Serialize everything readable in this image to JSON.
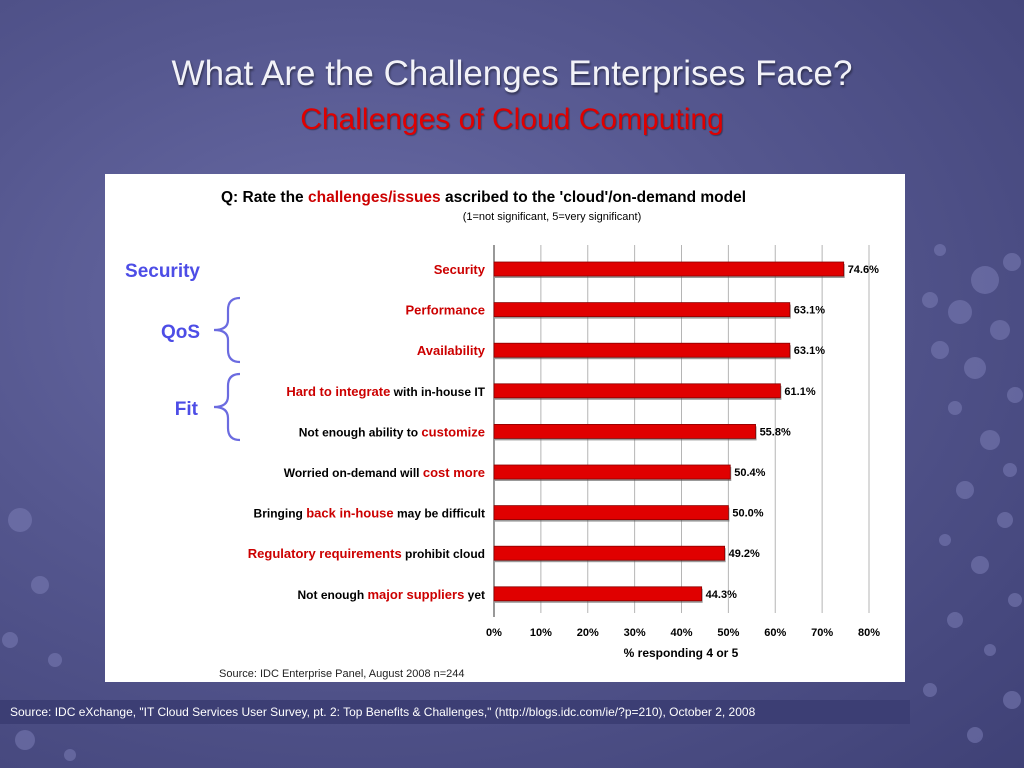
{
  "slide": {
    "title": "What Are the Challenges Enterprises Face?",
    "subtitle": "Challenges of Cloud Computing",
    "source_note": "Source: IDC eXchange, \"IT Cloud Services User Survey, pt. 2: Top Benefits & Challenges,\" (http://blogs.idc.com/ie/?p=210), October 2, 2008"
  },
  "groups": {
    "security": "Security",
    "qos": "QoS",
    "fit": "Fit"
  },
  "colors": {
    "bar": "#e00000",
    "highlight": "#cc0000",
    "group_label": "#4d4de6",
    "brace": "#6b6be0"
  },
  "chart_data": {
    "type": "bar",
    "orientation": "horizontal",
    "title_parts": [
      {
        "text": "Q: Rate the ",
        "hl": false
      },
      {
        "text": "challenges/issues",
        "hl": true
      },
      {
        "text": " ascribed to the 'cloud'/on-demand model",
        "hl": false
      }
    ],
    "subtitle": "(1=not significant, 5=very significant)",
    "categories": [
      [
        {
          "text": "Security",
          "hl": true
        }
      ],
      [
        {
          "text": "Performance",
          "hl": true
        }
      ],
      [
        {
          "text": "Availability",
          "hl": true
        }
      ],
      [
        {
          "text": "Hard to integrate",
          "hl": true
        },
        {
          "text": " with in-house IT",
          "hl": false
        }
      ],
      [
        {
          "text": "Not enough ability to ",
          "hl": false
        },
        {
          "text": "customize",
          "hl": true
        }
      ],
      [
        {
          "text": "Worried on-demand will ",
          "hl": false
        },
        {
          "text": "cost more",
          "hl": true
        }
      ],
      [
        {
          "text": "Bringing ",
          "hl": false
        },
        {
          "text": "back in-house",
          "hl": true
        },
        {
          "text": " may be difficult",
          "hl": false
        }
      ],
      [
        {
          "text": "Regulatory requirements",
          "hl": true
        },
        {
          "text": " prohibit cloud",
          "hl": false
        }
      ],
      [
        {
          "text": "Not enough ",
          "hl": false
        },
        {
          "text": "major suppliers",
          "hl": true
        },
        {
          "text": " yet",
          "hl": false
        }
      ]
    ],
    "values": [
      74.6,
      63.1,
      63.1,
      61.1,
      55.8,
      50.4,
      50.0,
      49.2,
      44.3
    ],
    "value_labels": [
      "74.6%",
      "63.1%",
      "63.1%",
      "61.1%",
      "55.8%",
      "50.4%",
      "50.0%",
      "49.2%",
      "44.3%"
    ],
    "xlim": [
      0,
      80
    ],
    "xticks": [
      0,
      10,
      20,
      30,
      40,
      50,
      60,
      70,
      80
    ],
    "xtick_labels": [
      "0%",
      "10%",
      "20%",
      "30%",
      "40%",
      "50%",
      "60%",
      "70%",
      "80%"
    ],
    "xlabel": "% responding 4 or 5",
    "ylabel": "",
    "grid": true,
    "legend": "none",
    "source": "Source: IDC Enterprise Panel, August 2008  n=244"
  }
}
